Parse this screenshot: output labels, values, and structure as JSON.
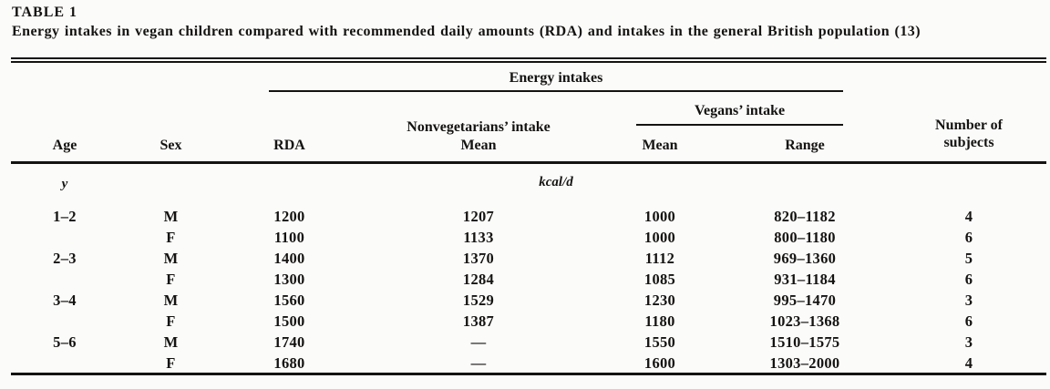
{
  "colors": {
    "paper": "#fbfbf9",
    "ink": "#141312"
  },
  "doc": {
    "label": "TABLE 1",
    "caption": "Energy intakes in vegan children compared with recommended daily amounts (RDA) and intakes in the general British population (13)"
  },
  "table": {
    "group_headers": {
      "energy": "Energy intakes",
      "vegans": "Vegans’ intake",
      "nonvegetarians": "Nonvegetarians’ intake"
    },
    "column_headers": {
      "age": "Age",
      "sex": "Sex",
      "rda": "RDA",
      "nonveg_mean": "Mean",
      "vegan_mean": "Mean",
      "vegan_range": "Range",
      "subjects": "Number of subjects"
    },
    "units": {
      "age": "y",
      "energy": "kcal/d"
    },
    "rows": [
      {
        "age": "1–2",
        "sex": "M",
        "rda": "1200",
        "nonveg_mean": "1207",
        "vegan_mean": "1000",
        "vegan_range": "820–1182",
        "subjects": "4"
      },
      {
        "age": "",
        "sex": "F",
        "rda": "1100",
        "nonveg_mean": "1133",
        "vegan_mean": "1000",
        "vegan_range": "800–1180",
        "subjects": "6"
      },
      {
        "age": "2–3",
        "sex": "M",
        "rda": "1400",
        "nonveg_mean": "1370",
        "vegan_mean": "1112",
        "vegan_range": "969–1360",
        "subjects": "5"
      },
      {
        "age": "",
        "sex": "F",
        "rda": "1300",
        "nonveg_mean": "1284",
        "vegan_mean": "1085",
        "vegan_range": "931–1184",
        "subjects": "6"
      },
      {
        "age": "3–4",
        "sex": "M",
        "rda": "1560",
        "nonveg_mean": "1529",
        "vegan_mean": "1230",
        "vegan_range": "995–1470",
        "subjects": "3"
      },
      {
        "age": "",
        "sex": "F",
        "rda": "1500",
        "nonveg_mean": "1387",
        "vegan_mean": "1180",
        "vegan_range": "1023–1368",
        "subjects": "6"
      },
      {
        "age": "5–6",
        "sex": "M",
        "rda": "1740",
        "nonveg_mean": "—",
        "vegan_mean": "1550",
        "vegan_range": "1510–1575",
        "subjects": "3"
      },
      {
        "age": "",
        "sex": "F",
        "rda": "1680",
        "nonveg_mean": "—",
        "vegan_mean": "1600",
        "vegan_range": "1303–2000",
        "subjects": "4"
      }
    ]
  }
}
